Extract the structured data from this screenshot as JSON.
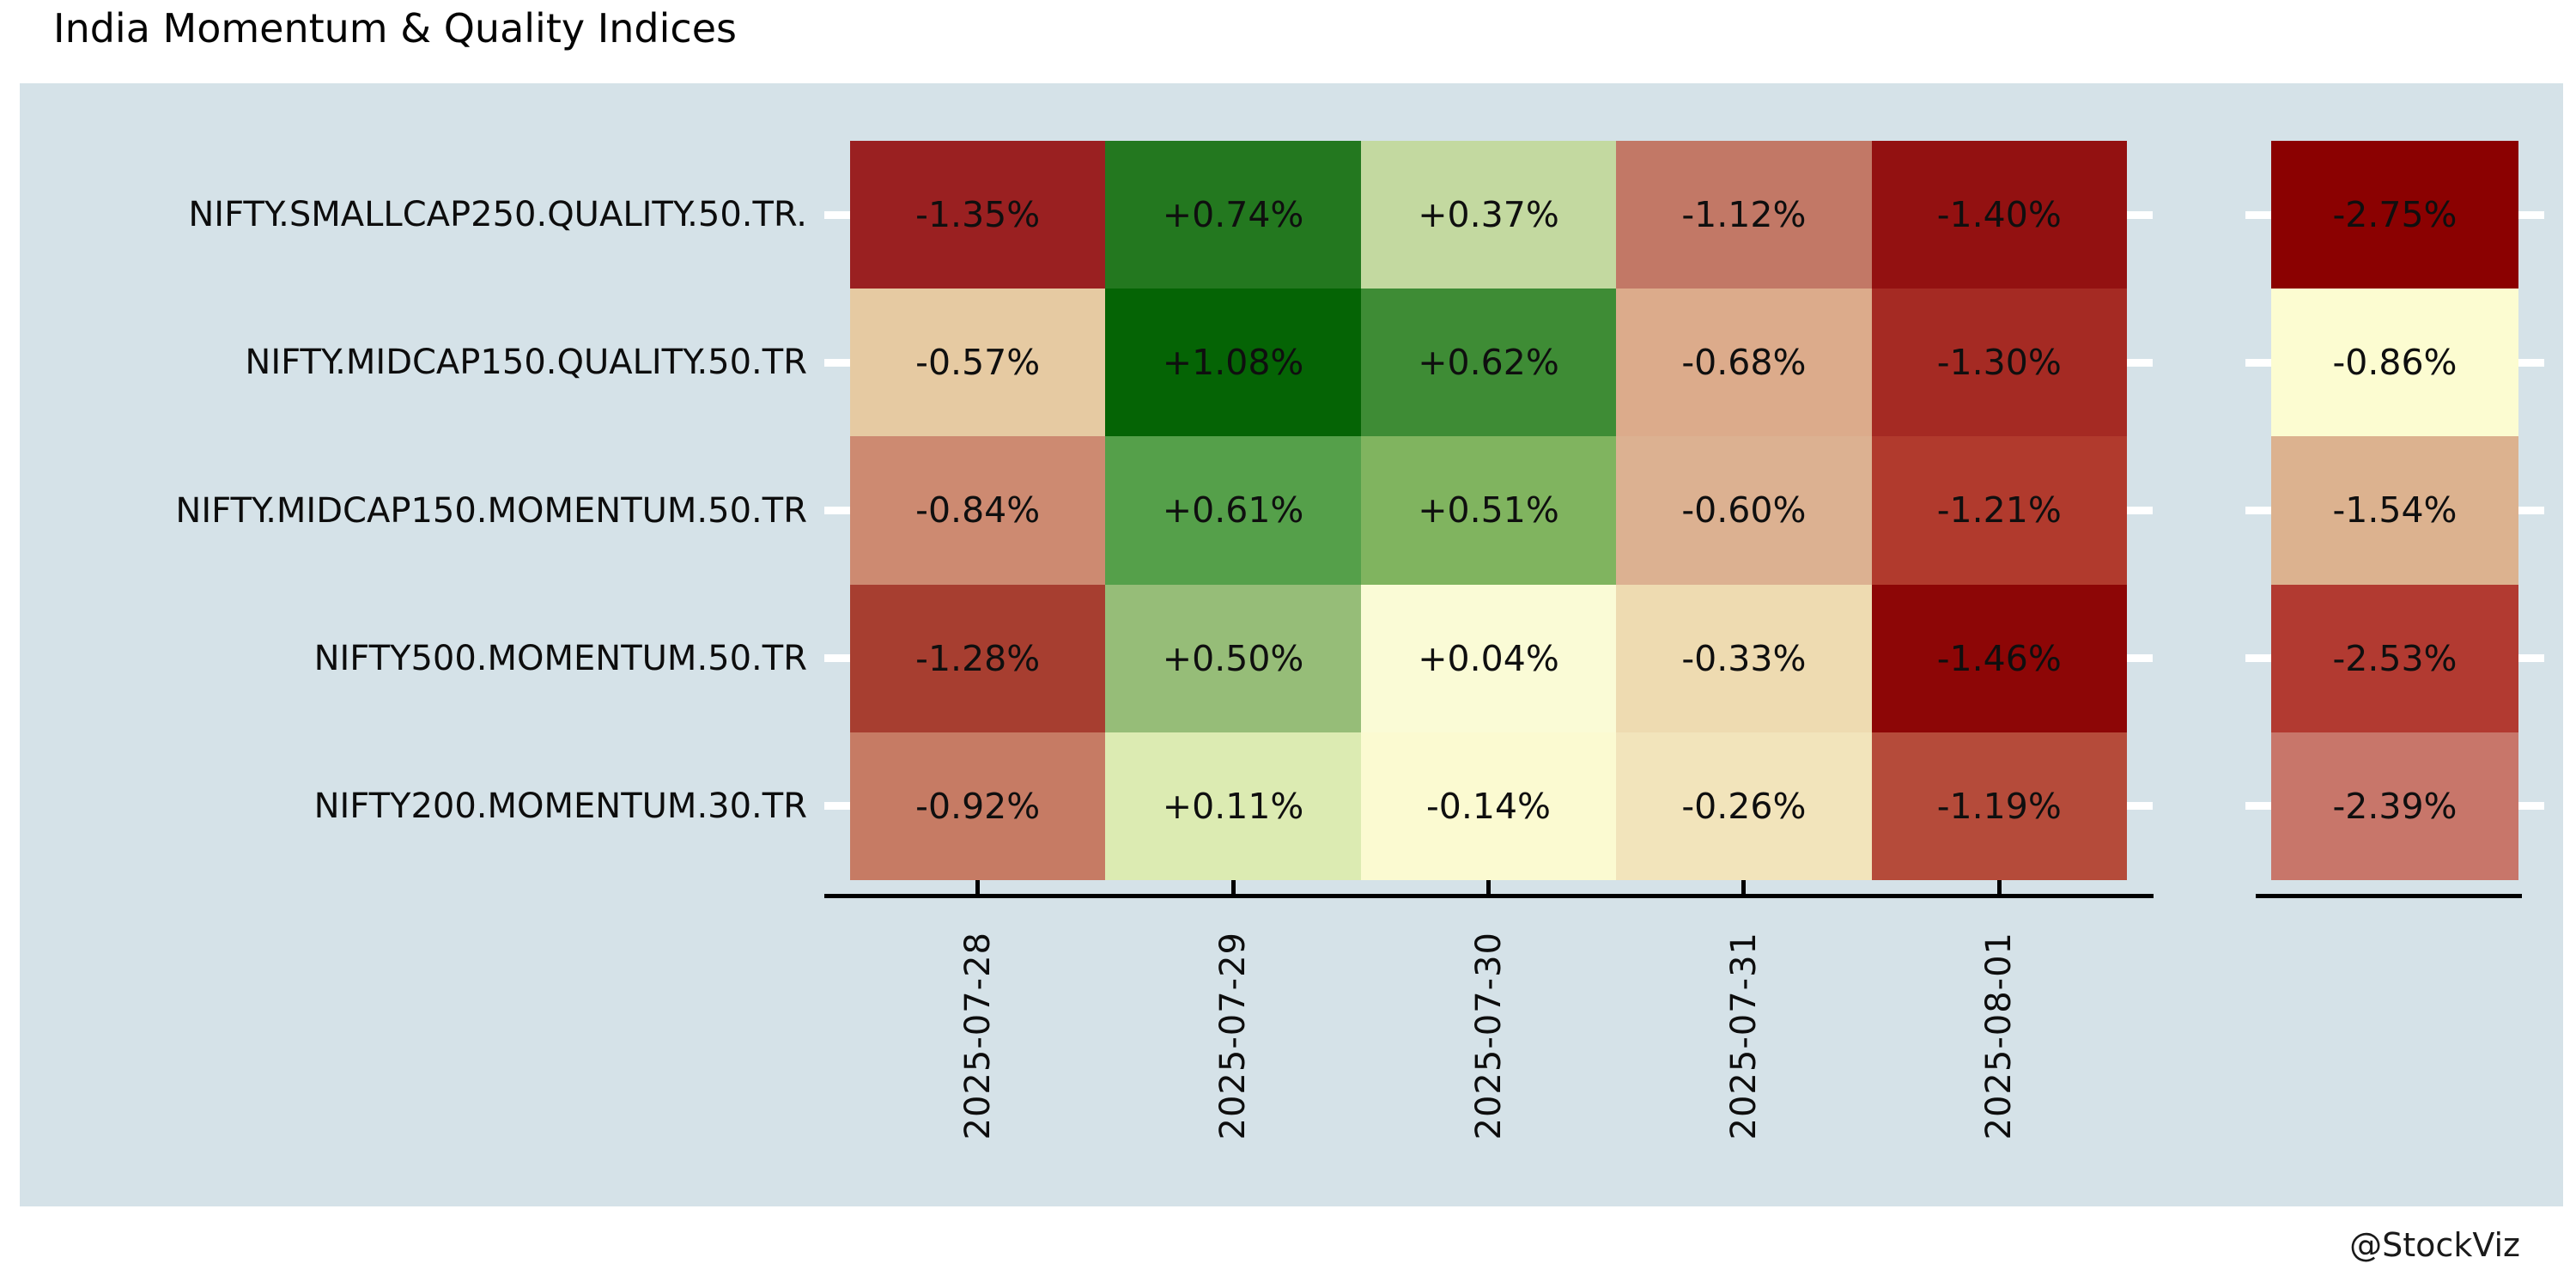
{
  "title": "India Momentum & Quality Indices",
  "watermark": "@StockViz",
  "colors": {
    "page_bg": "#ffffff",
    "panel_bg": "#d5e2e8",
    "axis_line": "#000000",
    "row_tick": "#ffffff",
    "text": "#0d0d0d"
  },
  "chart_data": {
    "type": "heatmap",
    "title": "India Momentum & Quality Indices",
    "colormap": "RdYlGn",
    "legend": "none",
    "grid": "off",
    "rows": [
      "NIFTY.SMALLCAP250.QUALITY.50.TR.",
      "NIFTY.MIDCAP150.QUALITY.50.TR",
      "NIFTY.MIDCAP150.MOMENTUM.50.TR",
      "NIFTY500.MOMENTUM.50.TR",
      "NIFTY200.MOMENTUM.30.TR"
    ],
    "columns": [
      "2025-07-28",
      "2025-07-29",
      "2025-07-30",
      "2025-07-31",
      "2025-08-01"
    ],
    "values": [
      [
        -1.35,
        0.74,
        0.37,
        -1.12,
        -1.4
      ],
      [
        -0.57,
        1.08,
        0.62,
        -0.68,
        -1.3
      ],
      [
        -0.84,
        0.61,
        0.51,
        -0.6,
        -1.21
      ],
      [
        -1.28,
        0.5,
        0.04,
        -0.33,
        -1.46
      ],
      [
        -0.92,
        0.11,
        -0.14,
        -0.26,
        -1.19
      ]
    ],
    "cell_labels": [
      [
        "-1.35%",
        "+0.74%",
        "+0.37%",
        "-1.12%",
        "-1.40%"
      ],
      [
        "-0.57%",
        "+1.08%",
        "+0.62%",
        "-0.68%",
        "-1.30%"
      ],
      [
        "-0.84%",
        "+0.61%",
        "+0.51%",
        "-0.60%",
        "-1.21%"
      ],
      [
        "-1.28%",
        "+0.50%",
        "+0.04%",
        "-0.33%",
        "-1.46%"
      ],
      [
        "-0.92%",
        "+0.11%",
        "-0.14%",
        "-0.26%",
        "-1.19%"
      ]
    ],
    "cell_colors": [
      [
        "#9a2021",
        "#23781f",
        "#c3d9a0",
        "#c27866",
        "#931111"
      ],
      [
        "#e6caa2",
        "#056405",
        "#3e8c35",
        "#dcab8b",
        "#a52a23"
      ],
      [
        "#cd8a71",
        "#55a04a",
        "#80b45f",
        "#dcb191",
        "#b13a2d"
      ],
      [
        "#a73e30",
        "#96bd78",
        "#fafbd6",
        "#eedbb1",
        "#8d0606"
      ],
      [
        "#c67b64",
        "#dcebb2",
        "#fbfad1",
        "#f2e4bb",
        "#b54b3a"
      ]
    ],
    "summary_column": {
      "position": "right-detached",
      "values": [
        -2.75,
        -0.86,
        -1.54,
        -2.53,
        -2.39
      ],
      "labels": [
        "-2.75%",
        "-0.86%",
        "-1.54%",
        "-2.53%",
        "-2.39%"
      ],
      "colors": [
        "#8b0101",
        "#fcfcd1",
        "#dcb28f",
        "#b23a31",
        "#c8766a"
      ]
    }
  }
}
